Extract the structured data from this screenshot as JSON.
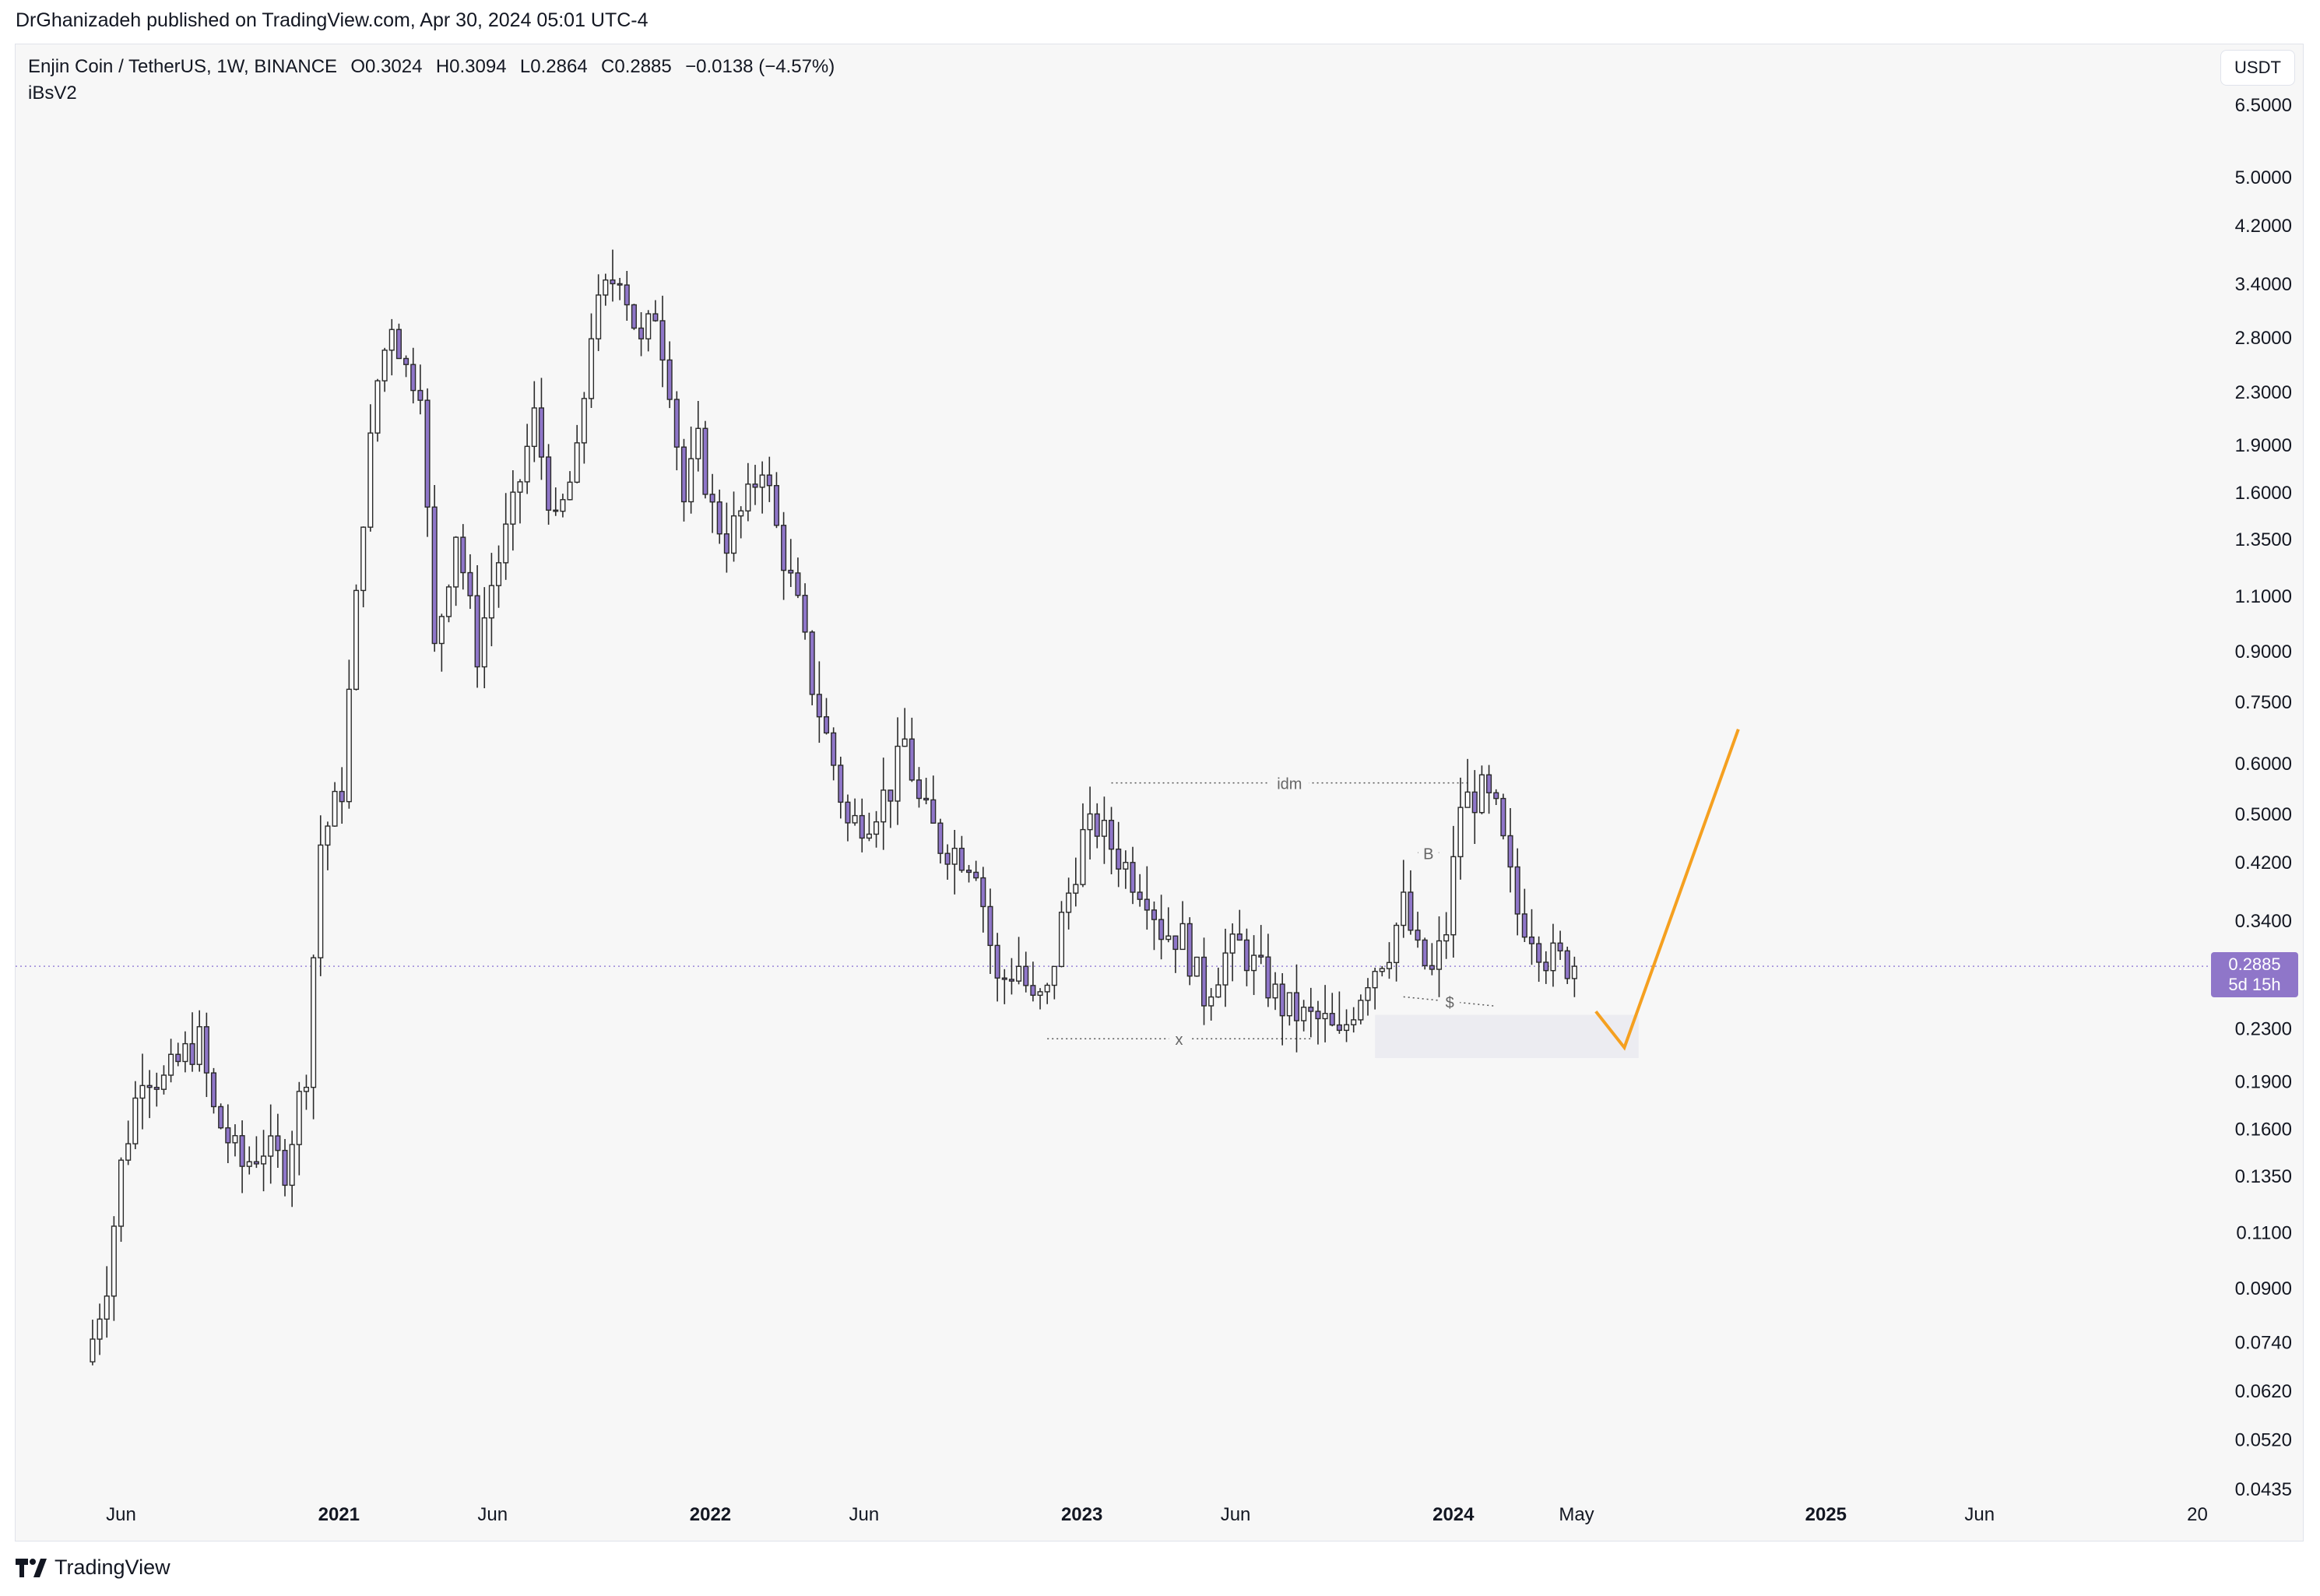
{
  "publish_line": "DrGhanizadeh published on TradingView.com, Apr 30, 2024 05:01 UTC-4",
  "symbol": {
    "name": "Enjin Coin / TetherUS, 1W, BINANCE",
    "open_label": "O0.3024",
    "high_label": "H0.3094",
    "low_label": "L0.2864",
    "close_label": "C0.2885",
    "change_label": "−0.0138 (−4.57%)"
  },
  "indicator": "iBsV2",
  "currency_button": "USDT",
  "price_label": {
    "price": "0.2885",
    "countdown": "5d 15h"
  },
  "footer": {
    "brand": "TradingView",
    "logo_icon": "tradingview-logo-icon"
  },
  "colors": {
    "candle_fill": "#8f76c9",
    "candle_outline": "#2a2a2a",
    "projection": "#f5a020",
    "price_line": "#9b86d8",
    "zone": "#ececf1",
    "background": "#f7f7f7"
  },
  "chart_data": {
    "type": "candlestick",
    "scale": "log",
    "ylim": [
      0.0435,
      6.5
    ],
    "y_ticks": [
      "6.5000",
      "5.0000",
      "4.2000",
      "3.4000",
      "2.8000",
      "2.3000",
      "1.9000",
      "1.6000",
      "1.3500",
      "1.1000",
      "0.9000",
      "0.7500",
      "0.6000",
      "0.5000",
      "0.4200",
      "0.3400",
      "0.2885",
      "0.2300",
      "0.1900",
      "0.1600",
      "0.1350",
      "0.1100",
      "0.0900",
      "0.0740",
      "0.0620",
      "0.0520",
      "0.0435"
    ],
    "x_ticks": [
      "Jun",
      "2021",
      "Jun",
      "2022",
      "Jun",
      "2023",
      "Jun",
      "2024",
      "May",
      "2025",
      "Jun",
      "20"
    ],
    "last_close": 0.2885,
    "anchors": [
      [
        "2020-05-04",
        0.075
      ],
      [
        "2020-05-18",
        0.093
      ],
      [
        "2020-06-01",
        0.14
      ],
      [
        "2020-06-22",
        0.2
      ],
      [
        "2020-07-13",
        0.19
      ],
      [
        "2020-08-03",
        0.21
      ],
      [
        "2020-08-17",
        0.22
      ],
      [
        "2020-08-31",
        0.17
      ],
      [
        "2020-09-28",
        0.14
      ],
      [
        "2020-10-19",
        0.15
      ],
      [
        "2020-11-09",
        0.14
      ],
      [
        "2020-11-30",
        0.2
      ],
      [
        "2020-12-14",
        0.45
      ],
      [
        "2021-01-04",
        0.55
      ],
      [
        "2021-01-25",
        1.5
      ],
      [
        "2021-02-08",
        2.4
      ],
      [
        "2021-02-22",
        3.0
      ],
      [
        "2021-03-08",
        2.5
      ],
      [
        "2021-03-22",
        2.4
      ],
      [
        "2021-04-05",
        0.9
      ],
      [
        "2021-04-26",
        1.4
      ],
      [
        "2021-05-17",
        0.9
      ],
      [
        "2021-05-31",
        1.15
      ],
      [
        "2021-06-21",
        1.5
      ],
      [
        "2021-07-12",
        2.1
      ],
      [
        "2021-08-02",
        1.4
      ],
      [
        "2021-08-23",
        1.8
      ],
      [
        "2021-09-06",
        2.9
      ],
      [
        "2021-09-20",
        3.3
      ],
      [
        "2021-10-04",
        3.6
      ],
      [
        "2021-10-25",
        2.7
      ],
      [
        "2021-11-08",
        3.1
      ],
      [
        "2021-11-22",
        2.4
      ],
      [
        "2021-12-06",
        1.55
      ],
      [
        "2021-12-20",
        1.9
      ],
      [
        "2022-01-03",
        1.5
      ],
      [
        "2022-01-17",
        1.35
      ],
      [
        "2022-02-07",
        1.55
      ],
      [
        "2022-02-21",
        1.8
      ],
      [
        "2022-03-07",
        1.4
      ],
      [
        "2022-03-28",
        1.05
      ],
      [
        "2022-04-11",
        0.8
      ],
      [
        "2022-05-02",
        0.6
      ],
      [
        "2022-05-16",
        0.48
      ],
      [
        "2022-06-06",
        0.5
      ],
      [
        "2022-06-27",
        0.55
      ],
      [
        "2022-07-11",
        0.65
      ],
      [
        "2022-07-25",
        0.52
      ],
      [
        "2022-08-15",
        0.45
      ],
      [
        "2022-08-29",
        0.44
      ],
      [
        "2022-09-19",
        0.42
      ],
      [
        "2022-10-10",
        0.27
      ],
      [
        "2022-10-31",
        0.29
      ],
      [
        "2022-11-14",
        0.25
      ],
      [
        "2022-11-28",
        0.26
      ],
      [
        "2022-12-12",
        0.34
      ],
      [
        "2023-01-02",
        0.46
      ],
      [
        "2023-01-16",
        0.48
      ],
      [
        "2023-02-06",
        0.43
      ],
      [
        "2023-02-20",
        0.4
      ],
      [
        "2023-03-06",
        0.38
      ],
      [
        "2023-03-20",
        0.33
      ],
      [
        "2023-04-10",
        0.32
      ],
      [
        "2023-05-01",
        0.26
      ],
      [
        "2023-05-22",
        0.3
      ],
      [
        "2023-06-05",
        0.31
      ],
      [
        "2023-06-26",
        0.28
      ],
      [
        "2023-07-17",
        0.25
      ],
      [
        "2023-08-07",
        0.24
      ],
      [
        "2023-08-28",
        0.235
      ],
      [
        "2023-09-11",
        0.22
      ],
      [
        "2023-09-25",
        0.25
      ],
      [
        "2023-10-09",
        0.28
      ],
      [
        "2023-10-30",
        0.31
      ],
      [
        "2023-11-13",
        0.36
      ],
      [
        "2023-11-27",
        0.3
      ],
      [
        "2023-12-11",
        0.28
      ],
      [
        "2023-12-25",
        0.33
      ],
      [
        "2024-01-08",
        0.52
      ],
      [
        "2024-01-29",
        0.54
      ],
      [
        "2024-02-12",
        0.5
      ],
      [
        "2024-03-04",
        0.35
      ],
      [
        "2024-03-18",
        0.33
      ],
      [
        "2024-04-01",
        0.3
      ],
      [
        "2024-04-29",
        0.2885
      ]
    ],
    "annotations": [
      {
        "label": "idm",
        "from": "2023-01-30",
        "to": "2024-01-15",
        "price": 0.56
      },
      {
        "label": "x",
        "from": "2022-11-28",
        "to": "2023-08-14",
        "price": 0.222
      },
      {
        "label": "B",
        "from": "2023-11-27",
        "to": "2023-12-18",
        "price": 0.435
      },
      {
        "label": "$",
        "from": "2023-11-13",
        "to": "2024-02-12",
        "price": 0.254
      }
    ],
    "zone": {
      "from": "2023-10-16",
      "to": "2024-07-01",
      "top": 0.242,
      "bottom": 0.207
    },
    "projection": [
      [
        "2024-05-20",
        0.245
      ],
      [
        "2024-06-17",
        0.215
      ],
      [
        "2024-10-07",
        0.68
      ]
    ]
  }
}
